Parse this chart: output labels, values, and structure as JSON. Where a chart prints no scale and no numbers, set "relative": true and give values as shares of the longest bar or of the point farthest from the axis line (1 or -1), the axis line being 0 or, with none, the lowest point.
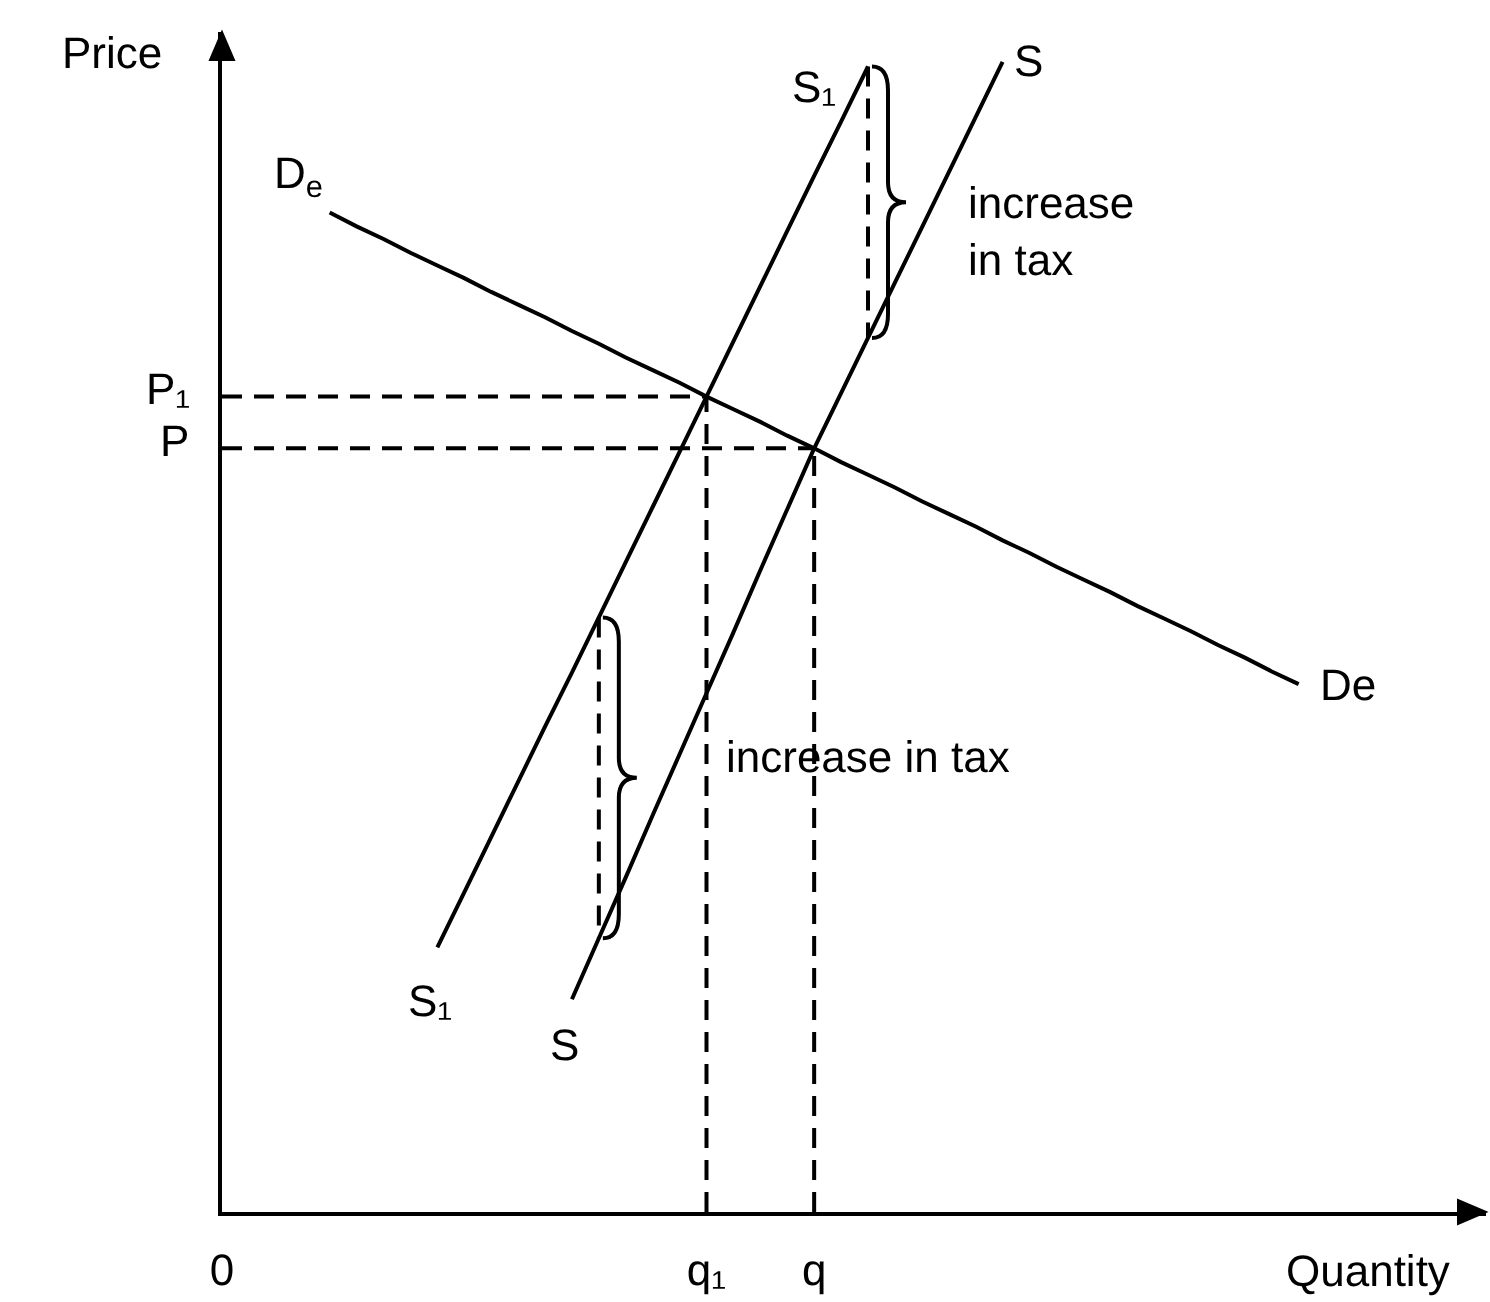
{
  "chart_data": {
    "type": "line",
    "relative": true,
    "xlabel": "Quantity",
    "ylabel": "Price",
    "categories": [
      "0",
      null,
      null,
      null,
      null,
      null,
      null,
      null,
      null,
      null,
      null,
      null,
      null,
      null,
      null,
      null,
      null,
      null,
      "q₁",
      null,
      null,
      null,
      "q",
      null,
      null,
      null,
      null,
      null,
      null,
      null,
      null,
      null,
      null,
      null,
      null,
      null,
      null,
      null,
      null,
      null,
      null,
      null,
      null,
      null,
      null,
      null,
      null
    ],
    "grid": false,
    "legend": false,
    "marker": "none",
    "line_style": "solid",
    "series": [
      {
        "name": "D$_{e}$",
        "color": "#000000",
        "values": [
          null,
          null,
          null,
          null,
          0.869,
          0.857,
          0.846,
          0.834,
          0.823,
          0.812,
          0.8,
          0.789,
          0.778,
          0.766,
          0.755,
          0.743,
          0.732,
          0.721,
          0.709,
          0.698,
          0.687,
          0.675,
          0.664,
          0.652,
          0.641,
          0.63,
          0.618,
          0.607,
          0.596,
          0.584,
          0.573,
          0.561,
          0.55,
          0.539,
          0.527,
          0.516,
          0.505,
          0.493,
          0.482,
          0.47,
          0.459,
          null,
          null,
          null,
          null,
          null,
          null
        ]
      },
      {
        "name": "S₁",
        "color": "#000000",
        "values": [
          null,
          null,
          null,
          null,
          null,
          null,
          null,
          null,
          0.23,
          0.278,
          0.326,
          0.374,
          0.422,
          0.469,
          0.517,
          0.565,
          0.613,
          0.661,
          0.709,
          0.757,
          0.805,
          0.853,
          0.901,
          0.948,
          0.996,
          null,
          null,
          null,
          null,
          null,
          null,
          null,
          null,
          null,
          null,
          null,
          null,
          null,
          null,
          null,
          null,
          null,
          null,
          null,
          null,
          null,
          null
        ]
      },
      {
        "name": "S",
        "color": "#000000",
        "values": [
          null,
          null,
          null,
          null,
          null,
          null,
          null,
          null,
          null,
          null,
          null,
          null,
          null,
          0.185,
          0.238,
          0.291,
          0.345,
          0.398,
          0.451,
          0.504,
          0.558,
          0.611,
          0.664,
          0.712,
          0.76,
          0.808,
          0.856,
          0.904,
          0.952,
          1.0,
          null,
          null,
          null,
          null,
          null,
          null,
          null,
          null,
          null,
          null,
          null,
          null,
          null,
          null,
          null,
          null,
          null
        ]
      },
      {
        "name": "P₁",
        "color": "#000000",
        "line_style": "dashed",
        "x": [
          "0",
          "q₁"
        ],
        "values": [
          0.709,
          0.709
        ]
      },
      {
        "name": "P",
        "color": "#000000",
        "line_style": "dashed",
        "x": [
          "0",
          "q"
        ],
        "values": [
          0.664,
          0.664
        ]
      },
      {
        "color": "#000000",
        "line_style": "dashed",
        "x": [
          "q₁",
          "q₁"
        ],
        "values": [
          0,
          0.709
        ]
      },
      {
        "color": "#000000",
        "line_style": "dashed",
        "x": [
          "q",
          "q"
        ],
        "values": [
          0,
          0.664
        ]
      }
    ],
    "annotations": [
      "De",
      "S₁",
      "S",
      "increase in tax",
      "increase in tax"
    ]
  }
}
